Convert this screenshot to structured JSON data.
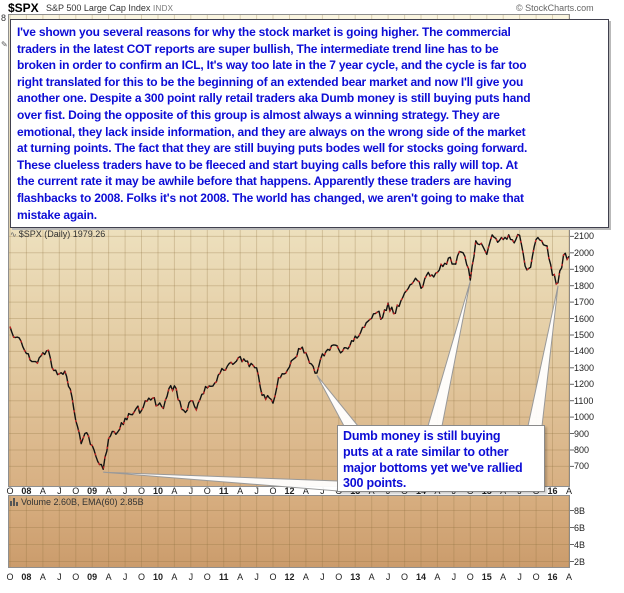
{
  "header": {
    "symbol": "$SPX",
    "name": "S&P 500 Large Cap Index",
    "exchange": "INDX",
    "copyright": "© StockCharts.com"
  },
  "icons": {
    "squiggle": "∿",
    "pencil": "✎"
  },
  "note_box": {
    "lines": [
      "I've shown you several reasons for why the stock market is going higher. The commercial",
      "traders in the latest COT reports are super bullish, The intermediate trend line has to be",
      "broken in order to confirm an ICL, It's way too late in the 7 year cycle, and the cycle is far too",
      "right translated for this to be the beginning of an extended bear market and now I'll give you",
      "another one. Despite a 300 point rally retail traders aka Dumb money is still buying puts hand",
      "over fist. Doing the opposite of this group is almost always a winning strategy. They are",
      "emotional, they lack inside information, and they are always on the wrong side of the market",
      "at turning points. The fact that they are still buying puts bodes well for stocks going forward.",
      "These clueless traders have to be fleeced and start buying calls before this rally will top. At",
      "the current rate it may be awhile before that happens. Apparently these traders are having",
      "flashbacks to 2008. Folks it's not 2008. The world has changed, we aren't going to make that",
      "mistake again."
    ]
  },
  "callout_box": {
    "lines": [
      "Dumb money is still buying",
      "puts at a rate similar to other",
      "major bottoms yet we've rallied",
      "300 points."
    ],
    "pointers": [
      {
        "points_to": "Mar 2009 low",
        "i": 17,
        "v": 677
      },
      {
        "points_to": "Jun 2012 low",
        "i": 56,
        "v": 1266
      },
      {
        "points_to": "Oct 2014 low",
        "i": 84,
        "v": 1840
      },
      {
        "points_to": "Feb 2016 low",
        "i": 100,
        "v": 1810
      }
    ]
  },
  "main_pane": {
    "series_label": "$SPX (Daily) 1979.26",
    "clipped_scale_digit": "8",
    "y_ticks": [
      "2100",
      "2000",
      "1900",
      "1800",
      "1700",
      "1600",
      "1500",
      "1400",
      "1300",
      "1200",
      "1100",
      "1000",
      "900",
      "800",
      "700"
    ]
  },
  "volume_pane": {
    "label": "Volume 2.60B, EMA(60) 2.85B",
    "y_ticks": [
      "8B",
      "6B",
      "4B",
      "2B"
    ]
  },
  "x_axis": {
    "labels": [
      "O",
      "08",
      "A",
      "J",
      "O",
      "09",
      "A",
      "J",
      "O",
      "10",
      "A",
      "J",
      "O",
      "11",
      "A",
      "J",
      "O",
      "12",
      "A",
      "J",
      "O",
      "13",
      "A",
      "J",
      "O",
      "14",
      "A",
      "J",
      "O",
      "15",
      "A",
      "J",
      "O",
      "16",
      "A"
    ],
    "bold_indices": [
      1,
      5,
      9,
      13,
      17,
      21,
      25,
      29,
      33
    ]
  },
  "colors": {
    "note_text": "#0d0dd6",
    "grid": "rgba(140,110,60,0.28)",
    "candle_up": "#111111",
    "candle_down": "#c22222",
    "pane_bg_top": "#faf5e0",
    "pane_bg_bottom": "#d8b083",
    "volume_bg_bottom": "#cb9c6c",
    "wedge_stroke": "#999999"
  },
  "chart_data": {
    "type": "line",
    "title": "$SPX S&P 500 Large Cap Index (Daily)",
    "last_value": 1979.26,
    "x_start": "2007-10",
    "x_end": "2016-04",
    "x_step": "1 month",
    "ylim": [
      570,
      2140
    ],
    "y_gridstep": 100,
    "legend_position": "none",
    "grid": true,
    "series": [
      {
        "name": "$SPX close (monthly approximation of daily candles)",
        "values": [
          1549,
          1481,
          1468,
          1379,
          1331,
          1323,
          1386,
          1400,
          1280,
          1267,
          1283,
          1166,
          969,
          830,
          903,
          826,
          735,
          677,
          873,
          919,
          919,
          987,
          1021,
          1057,
          1036,
          1096,
          1115,
          1074,
          1056,
          1169,
          1187,
          1089,
          1031,
          1102,
          1049,
          1141,
          1183,
          1181,
          1258,
          1286,
          1327,
          1326,
          1364,
          1345,
          1321,
          1292,
          1129,
          1131,
          1090,
          1247,
          1258,
          1312,
          1366,
          1408,
          1398,
          1320,
          1266,
          1379,
          1407,
          1441,
          1412,
          1416,
          1426,
          1498,
          1515,
          1569,
          1598,
          1631,
          1606,
          1686,
          1633,
          1682,
          1757,
          1806,
          1848,
          1783,
          1859,
          1872,
          1884,
          1924,
          1960,
          1931,
          2003,
          1972,
          1840,
          2068,
          2059,
          1995,
          2105,
          2068,
          2086,
          2107,
          2063,
          2104,
          1913,
          1920,
          2079,
          2080,
          2044,
          1870,
          1810,
          1990,
          1979
        ]
      }
    ],
    "key_lows": {
      "2009-03": 677,
      "2012-06": 1266,
      "2014-10": 1840,
      "2016-02": 1810
    },
    "volume": {
      "label": "Volume 2.60B, EMA(60) 2.85B",
      "y_ticks": [
        "2B",
        "4B",
        "6B",
        "8B"
      ],
      "bars_visible": false
    }
  }
}
